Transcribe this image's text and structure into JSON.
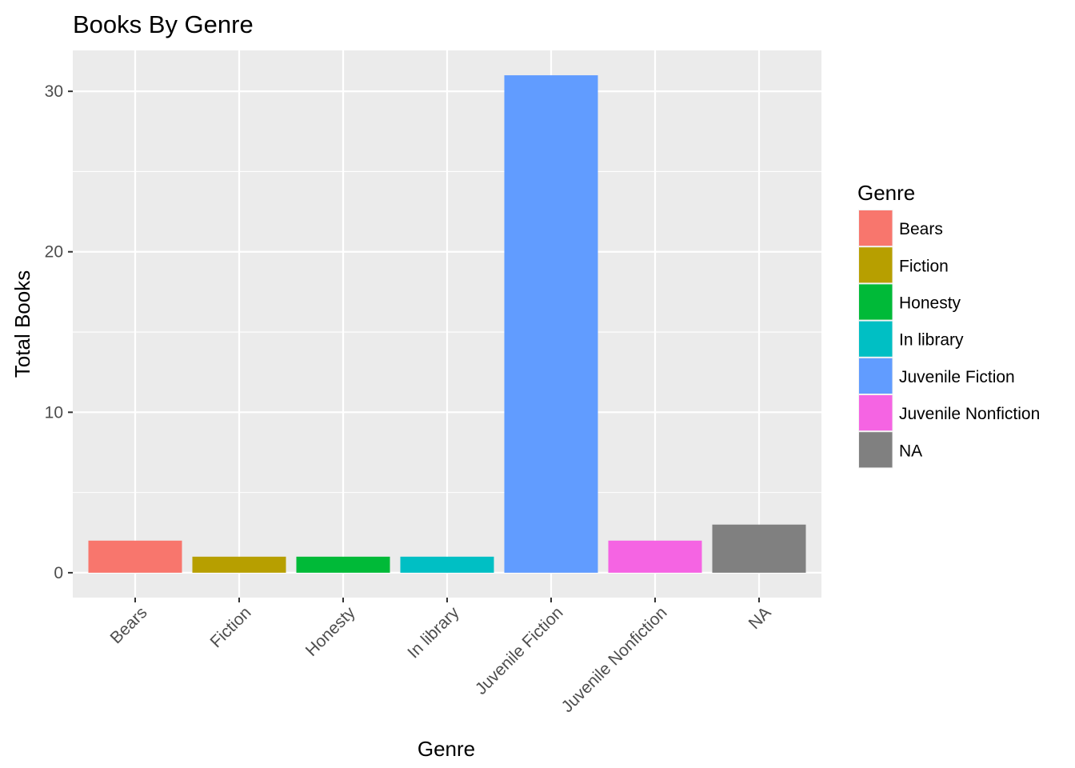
{
  "chart_data": {
    "type": "bar",
    "title": "Books By Genre",
    "xlabel": "Genre",
    "ylabel": "Total Books",
    "categories": [
      "Bears",
      "Fiction",
      "Honesty",
      "In library",
      "Juvenile Fiction",
      "Juvenile Nonfiction",
      "NA"
    ],
    "values": [
      2,
      1,
      1,
      1,
      31,
      2,
      3
    ],
    "colors": [
      "#F8766D",
      "#B79F00",
      "#00BA38",
      "#00BFC4",
      "#619CFF",
      "#F564E3",
      "#808080"
    ],
    "ylim": [
      -1.55,
      32.55
    ],
    "yticks": [
      0,
      10,
      20,
      30
    ],
    "yminor": [
      5,
      15,
      25
    ],
    "grid": true,
    "background": "#EBEBEB",
    "legend": {
      "title": "Genre",
      "position": "right",
      "entries": [
        "Bears",
        "Fiction",
        "Honesty",
        "In library",
        "Juvenile Fiction",
        "Juvenile Nonfiction",
        "NA"
      ]
    }
  }
}
